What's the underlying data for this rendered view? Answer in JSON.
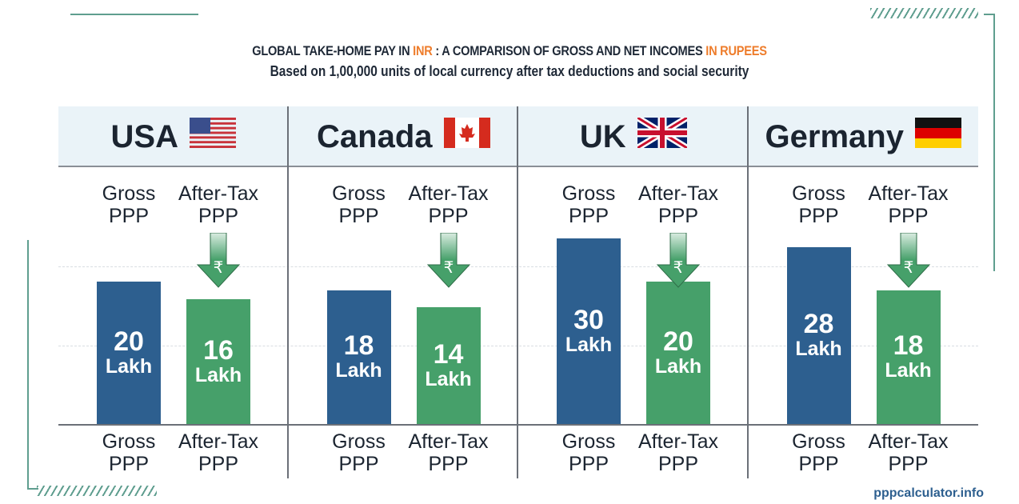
{
  "title": {
    "prefix": "GLOBAL TAKE-HOME PAY IN ",
    "hl1": "INR",
    "middle": " : A COMPARISON OF GROSS AND NET INCOMES ",
    "hl2": "IN RUPEES"
  },
  "subtitle": "Based on 1,00,000 units of local currency after tax deductions and social security",
  "footer": "pppcalculator.info",
  "colors": {
    "gross": "#2d5f8f",
    "after_tax": "#46a06a",
    "accent": "#ee7d2c"
  },
  "chart_data": {
    "type": "bar",
    "categories": [
      "USA",
      "Canada",
      "UK",
      "Germany"
    ],
    "flags": [
      "us-flag",
      "canada-flag",
      "uk-flag",
      "germany-flag"
    ],
    "unit": "Lakh",
    "arrow_symbol": "₹",
    "series": [
      {
        "name": "Gross PPP",
        "label_l1": "Gross",
        "label_l2": "PPP",
        "values": [
          20,
          18,
          30,
          28
        ]
      },
      {
        "name": "After-Tax PPP",
        "label_l1": "After-Tax",
        "label_l2": "PPP",
        "values": [
          16,
          14,
          20,
          18
        ]
      }
    ],
    "grid": true
  }
}
